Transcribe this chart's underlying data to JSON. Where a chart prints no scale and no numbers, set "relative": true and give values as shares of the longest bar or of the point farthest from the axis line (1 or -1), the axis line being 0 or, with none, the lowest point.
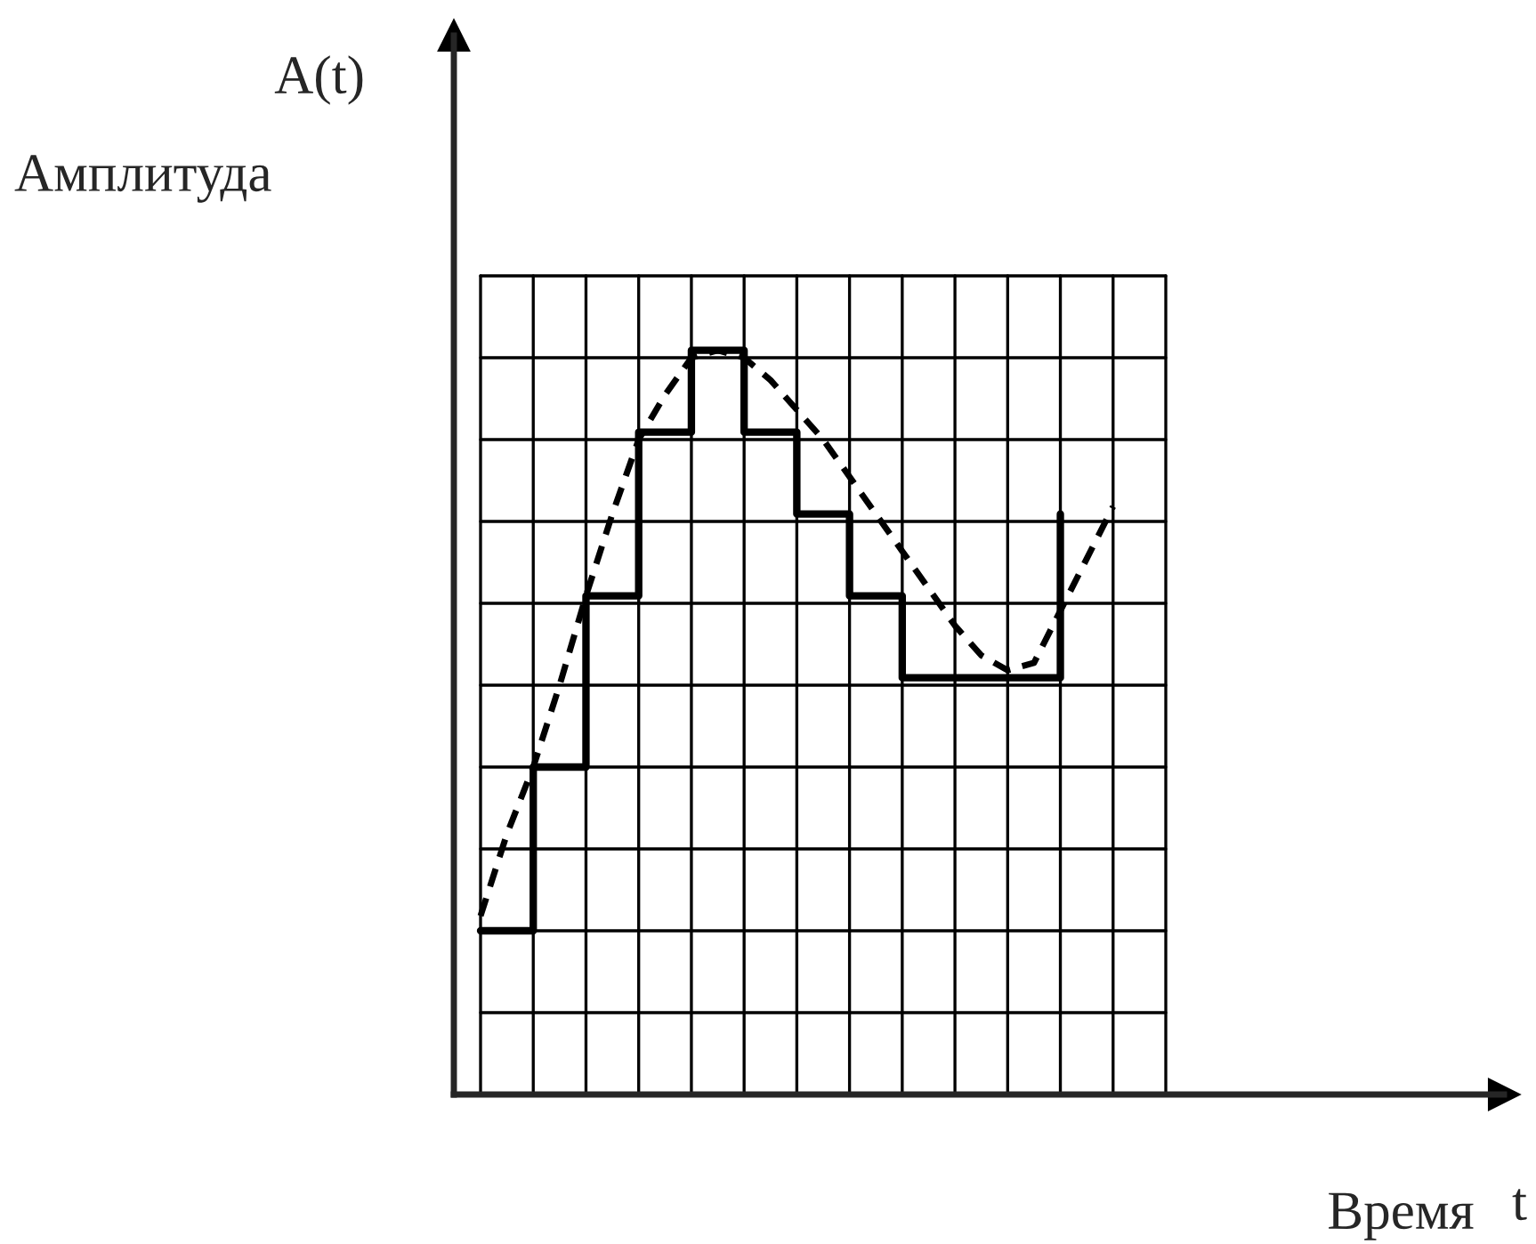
{
  "chart_data": {
    "type": "step",
    "relative": true,
    "grid": true,
    "xlabel": "Время",
    "ylabel": "Амплитуда",
    "annotations": [
      "A(t)",
      "t"
    ],
    "categories": [
      null,
      null,
      null,
      null,
      null,
      null,
      null,
      null,
      null,
      null,
      null,
      null,
      null,
      null,
      null,
      null,
      null,
      null,
      null,
      null,
      null,
      null,
      null,
      null,
      null
    ],
    "series": [
      {
        "color": "#000000",
        "line_style": "solid",
        "values": [
          0.22,
          0.22,
          0.44,
          0.44,
          0.67,
          0.67,
          0.89,
          0.89,
          1,
          1,
          0.89,
          0.89,
          0.78,
          0.78,
          0.67,
          0.67,
          0.56,
          0.56,
          0.56,
          0.56,
          0.56,
          0.56,
          0.78,
          null,
          null
        ]
      },
      {
        "type": "line",
        "color": "#000000",
        "line_style": "dashed",
        "values": [
          0.24,
          0.35,
          0.44,
          0.55,
          0.67,
          0.78,
          0.88,
          0.94,
          0.99,
          1.0,
          0.99,
          0.96,
          0.92,
          0.88,
          0.83,
          0.78,
          0.73,
          0.68,
          0.63,
          0.59,
          0.57,
          0.58,
          0.65,
          0.72,
          0.79
        ]
      }
    ]
  }
}
